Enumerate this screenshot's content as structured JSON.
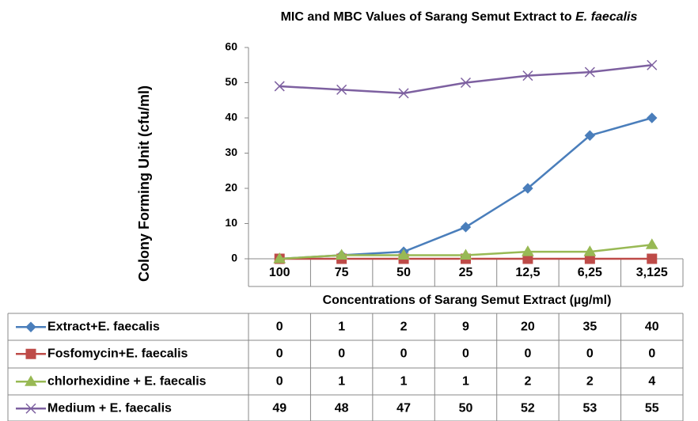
{
  "chart_data": {
    "type": "line",
    "title": [
      "MIC and MBC Values of Sarang Semut Extract to",
      "E. faecalis"
    ],
    "x_label": "Concentrations of Sarang Semut Extract (µg/ml)",
    "y_label": "Colony Forming Unit (cfu/ml)",
    "categories": [
      "100",
      "75",
      "50",
      "25",
      "12,5",
      "6,25",
      "3,125"
    ],
    "ylim": [
      0,
      60
    ],
    "yticks": [
      0,
      10,
      20,
      30,
      40,
      50,
      60
    ],
    "grid": false,
    "series": [
      {
        "name": "Extract+E. faecalis",
        "color": "#4a7ebb",
        "marker": "diamond",
        "values": [
          0,
          1,
          2,
          9,
          20,
          35,
          40
        ]
      },
      {
        "name": "Fosfomycin+E. faecalis",
        "color": "#be4b48",
        "marker": "square",
        "values": [
          0,
          0,
          0,
          0,
          0,
          0,
          0
        ]
      },
      {
        "name": "chlorhexidine + E. faecalis",
        "color": "#98b954",
        "marker": "triangle",
        "values": [
          0,
          1,
          1,
          1,
          2,
          2,
          4
        ]
      },
      {
        "name": "Medium + E. faecalis",
        "color": "#7d60a0",
        "marker": "x",
        "values": [
          49,
          48,
          47,
          50,
          52,
          53,
          55
        ]
      }
    ]
  }
}
